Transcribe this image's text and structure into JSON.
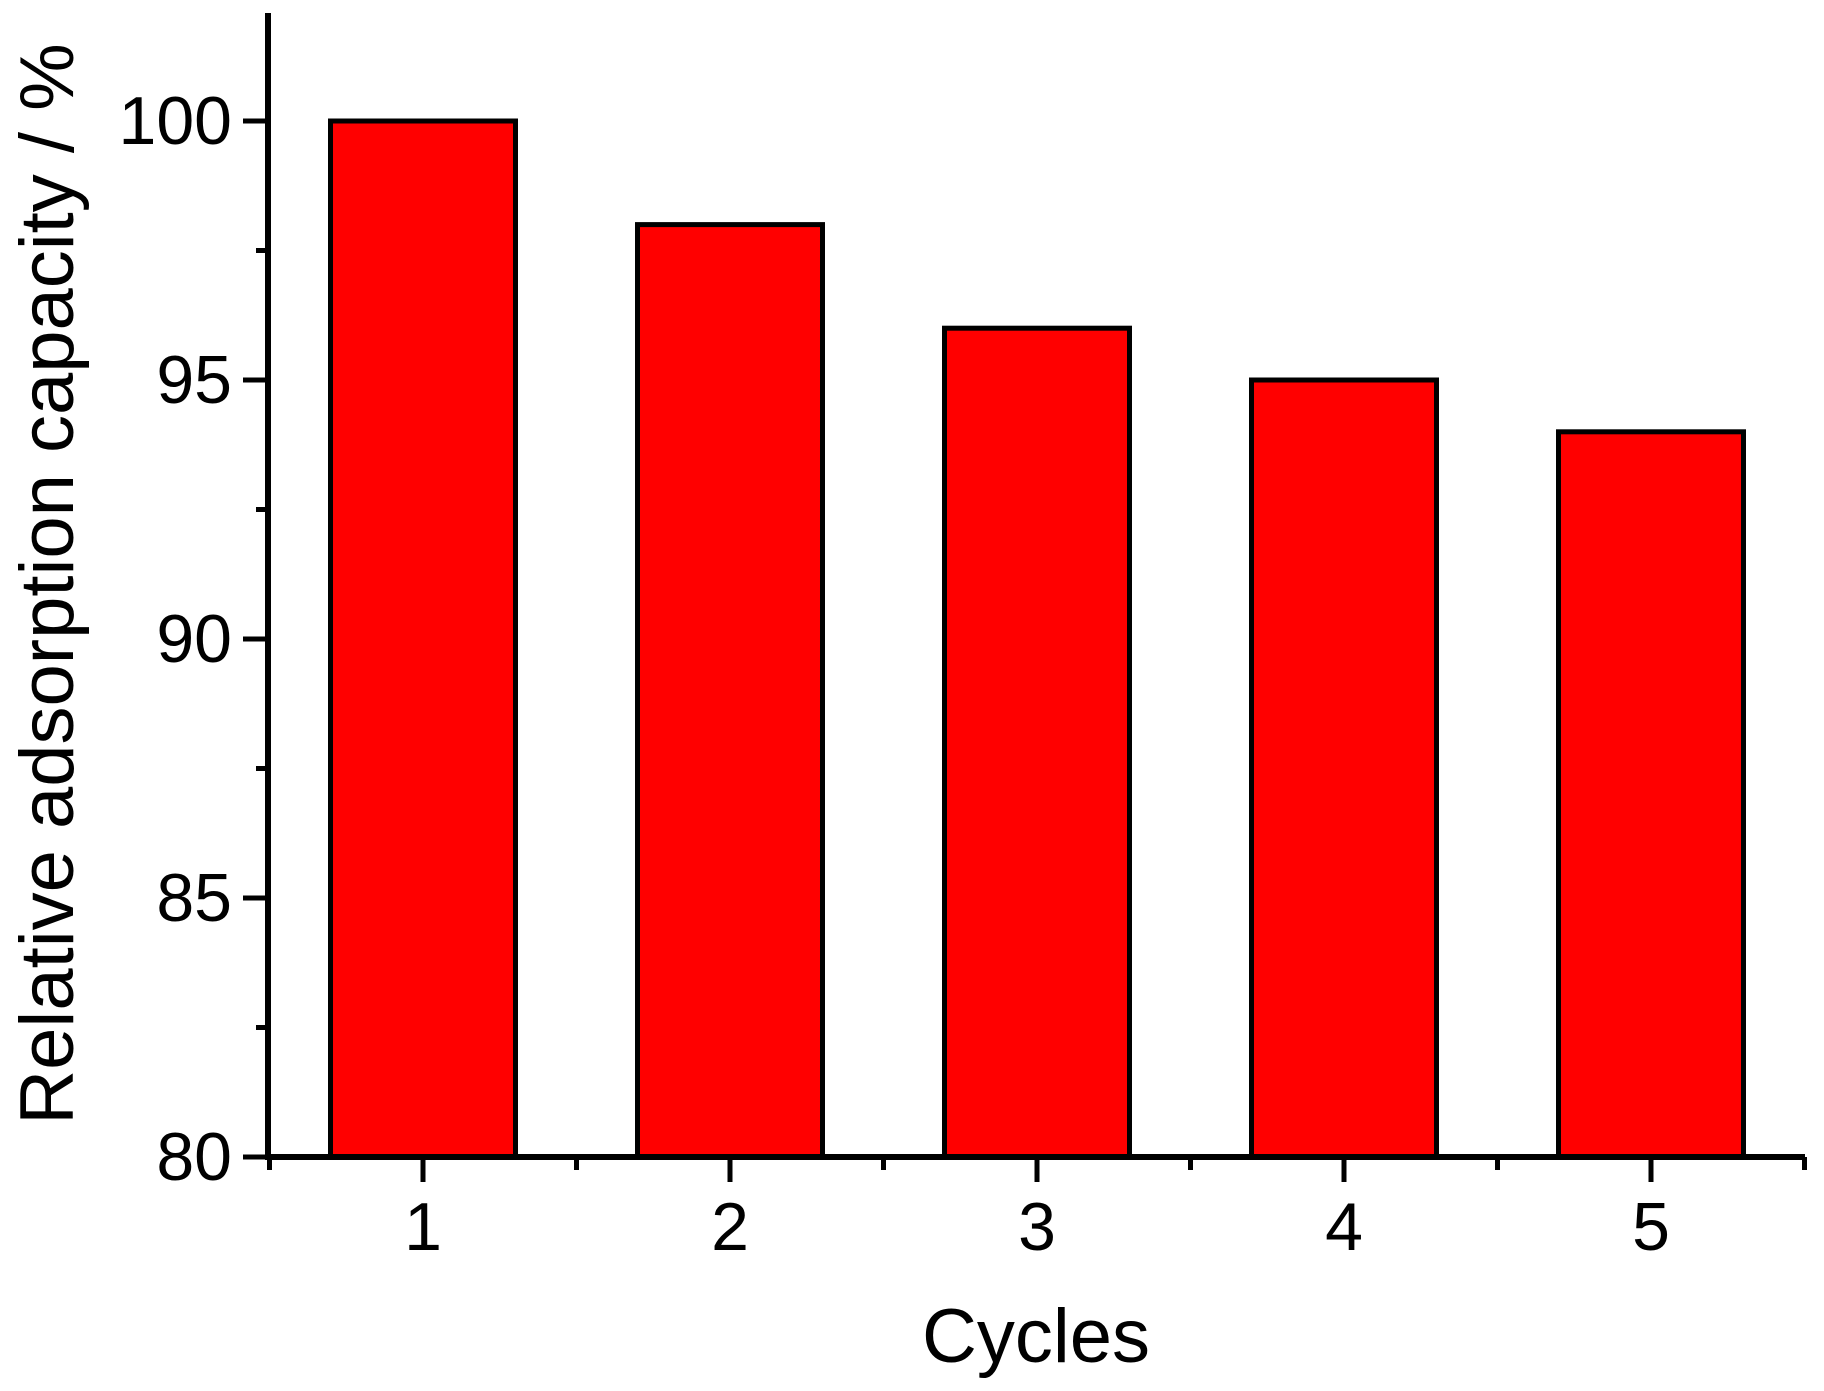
{
  "figure": {
    "background": "#FFFFFF"
  },
  "chart_data": {
    "type": "bar",
    "title": "",
    "xlabel": "Cycles",
    "ylabel": "Relative adsorption capacity / %",
    "categories": [
      "1",
      "2",
      "3",
      "4",
      "5"
    ],
    "values": [
      100,
      98,
      96,
      95,
      94
    ],
    "series": [
      {
        "name": "Relative adsorption capacity",
        "values": [
          100,
          98,
          96,
          95,
          94
        ]
      }
    ],
    "ylim": [
      80,
      102
    ],
    "yticks_major": [
      80,
      85,
      90,
      95,
      100
    ],
    "yticks_minor": [
      82.5,
      87.5,
      92.5,
      97.5
    ],
    "grid": false,
    "legend_position": "none",
    "colors": {
      "bar_fill": "#FF0000",
      "bar_stroke": "#000000",
      "axis": "#000000",
      "text": "#000000"
    }
  }
}
